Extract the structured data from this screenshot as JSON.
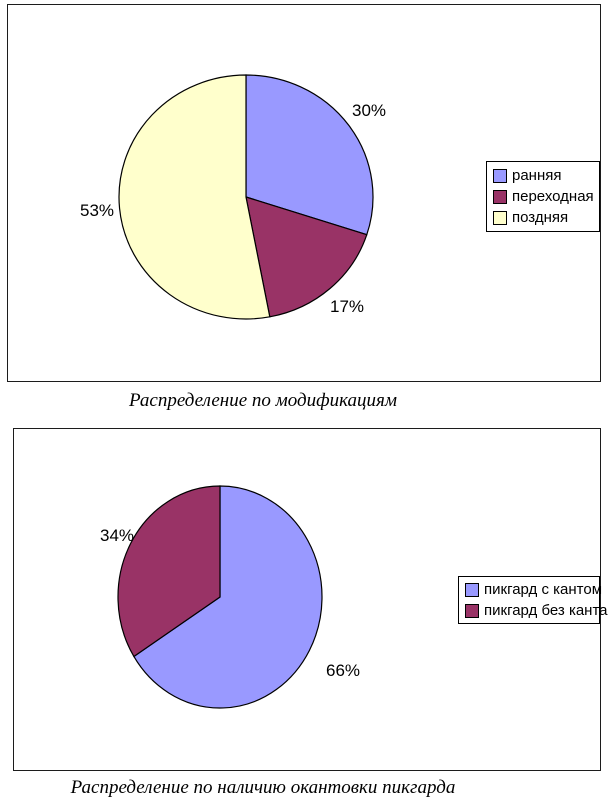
{
  "page": {
    "background": "#ffffff",
    "panel_border_color": "#1c1c1c"
  },
  "chart_data": [
    {
      "type": "pie",
      "title": "Распределение по модификациям",
      "categories": [
        "ранняя",
        "переходная",
        "поздняя"
      ],
      "values": [
        30,
        17,
        53
      ],
      "labels": [
        "30%",
        "17%",
        "53%"
      ],
      "colors": [
        "#9999FF",
        "#993366",
        "#FFFFCC"
      ],
      "slice_border_color": "#000000",
      "legend_position": "right",
      "legend_border_color": "#000000",
      "start_angle_deg": 0,
      "direction": "clockwise",
      "label_radius": [
        1.2,
        1.2,
        1.18
      ]
    },
    {
      "type": "pie",
      "title": "Распределение по наличию окантовки пикгарда",
      "categories": [
        "пикгард с кантом",
        "пикгард без канта"
      ],
      "values": [
        66,
        34
      ],
      "labels": [
        "66%",
        "34%"
      ],
      "colors": [
        "#9999FF",
        "#993366"
      ],
      "slice_border_color": "#000000",
      "legend_position": "right",
      "legend_border_color": "#000000",
      "start_angle_deg": 0,
      "direction": "clockwise",
      "label_radius": [
        1.38,
        1.15
      ]
    }
  ]
}
